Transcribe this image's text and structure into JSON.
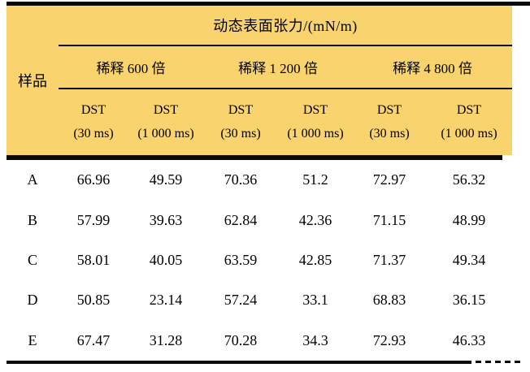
{
  "table": {
    "main_header": "动态表面张力/(mN/m)",
    "corner_label": "样品",
    "groups": [
      {
        "label": "稀释 600 倍"
      },
      {
        "label": "稀释 1 200 倍"
      },
      {
        "label": "稀释 4 800 倍"
      }
    ],
    "sub_headers": [
      {
        "title": "DST",
        "time": "(30 ms)"
      },
      {
        "title": "DST",
        "time": "(1 000 ms)"
      },
      {
        "title": "DST",
        "time": "(30 ms)"
      },
      {
        "title": "DST",
        "time": "(1 000 ms)"
      },
      {
        "title": "DST",
        "time": "(30 ms)"
      },
      {
        "title": "DST",
        "time": "(1 000 ms)"
      }
    ],
    "rows": [
      {
        "sample": "A",
        "values": [
          "66.96",
          "49.59",
          "70.36",
          "51.2",
          "72.97",
          "56.32"
        ]
      },
      {
        "sample": "B",
        "values": [
          "57.99",
          "39.63",
          "62.84",
          "42.36",
          "71.15",
          "48.99"
        ]
      },
      {
        "sample": "C",
        "values": [
          "58.01",
          "40.05",
          "63.59",
          "42.85",
          "71.37",
          "49.34"
        ]
      },
      {
        "sample": "D",
        "values": [
          "50.85",
          "23.14",
          "57.24",
          "33.1",
          "68.83",
          "36.15"
        ]
      },
      {
        "sample": "E",
        "values": [
          "67.47",
          "31.28",
          "70.28",
          "34.3",
          "72.93",
          "46.33"
        ]
      }
    ]
  },
  "colors": {
    "header_background": "#F9D36E",
    "rule": "#0A0A0A",
    "text": "#000000"
  }
}
